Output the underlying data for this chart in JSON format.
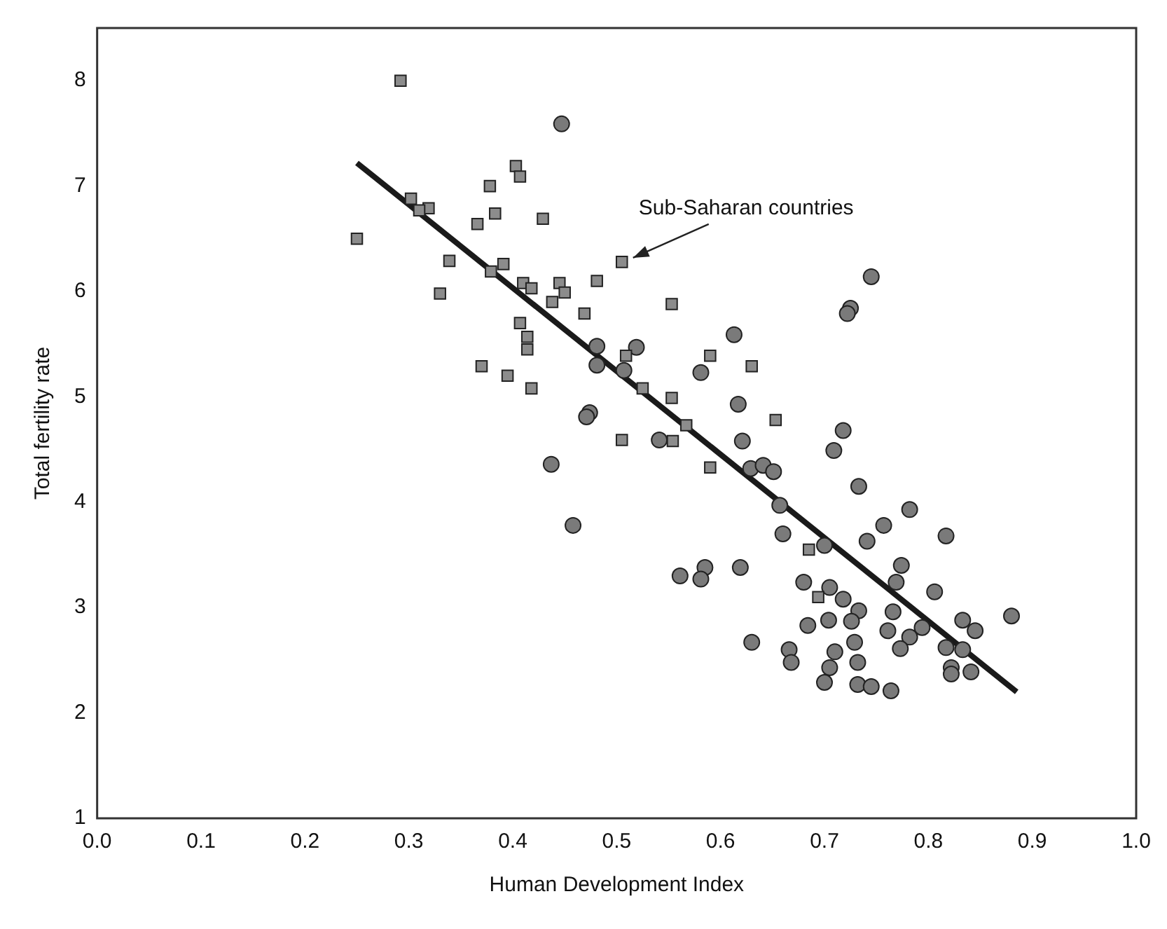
{
  "chart_data": {
    "type": "scatter",
    "xlabel": "Human Development Index",
    "ylabel": "Total fertility rate",
    "xlim": [
      0,
      1
    ],
    "xticks": [
      {
        "value": 0,
        "label": "0.0"
      },
      0.1,
      0.2,
      0.3,
      0.4,
      0.5,
      0.6,
      0.7,
      0.8,
      0.9,
      {
        "value": 1,
        "label": "1.0"
      }
    ],
    "ylim": [
      1,
      8.5
    ],
    "yticks": [
      1,
      2,
      3,
      4,
      5,
      6,
      7,
      8
    ],
    "grid": false,
    "legend": false,
    "annotations": [
      {
        "text": "Sub-Saharan countries",
        "x": 0.505,
        "y": 6.28
      }
    ],
    "series": [
      {
        "type": "scatter",
        "marker": "square",
        "color": "#8c8c8c",
        "x": [
          0.292,
          0.302,
          0.319,
          0.31,
          0.25,
          0.378,
          0.403,
          0.407,
          0.383,
          0.366,
          0.429,
          0.339,
          0.33,
          0.391,
          0.379,
          0.41,
          0.418,
          0.445,
          0.45,
          0.438,
          0.481,
          0.505,
          0.469,
          0.407,
          0.414,
          0.414,
          0.37,
          0.395,
          0.418,
          0.505,
          0.509,
          0.525,
          0.553,
          0.553,
          0.59,
          0.63,
          0.567,
          0.554,
          0.59,
          0.653,
          0.685,
          0.694
        ],
        "values": [
          8.0,
          6.88,
          6.79,
          6.77,
          6.5,
          7.0,
          7.19,
          7.09,
          6.74,
          6.64,
          6.69,
          6.29,
          5.98,
          6.26,
          6.19,
          6.08,
          6.03,
          6.08,
          5.99,
          5.9,
          6.1,
          6.28,
          5.79,
          5.7,
          5.57,
          5.45,
          5.29,
          5.2,
          5.08,
          4.59,
          5.39,
          5.08,
          5.88,
          4.99,
          5.39,
          5.29,
          4.73,
          4.58,
          4.33,
          4.78,
          3.55,
          3.1
        ]
      },
      {
        "type": "scatter",
        "marker": "circle",
        "color": "#7a7a7a",
        "x": [
          0.447,
          0.481,
          0.481,
          0.519,
          0.507,
          0.474,
          0.471,
          0.437,
          0.458,
          0.613,
          0.725,
          0.722,
          0.581,
          0.617,
          0.621,
          0.541,
          0.629,
          0.641,
          0.651,
          0.657,
          0.66,
          0.718,
          0.709,
          0.733,
          0.741,
          0.757,
          0.7,
          0.561,
          0.585,
          0.581,
          0.619,
          0.68,
          0.705,
          0.718,
          0.733,
          0.745,
          0.782,
          0.817,
          0.774,
          0.769,
          0.726,
          0.704,
          0.684,
          0.766,
          0.806,
          0.761,
          0.782,
          0.794,
          0.833,
          0.845,
          0.88,
          0.729,
          0.773,
          0.817,
          0.833,
          0.822,
          0.822,
          0.841,
          0.666,
          0.668,
          0.71,
          0.732,
          0.705,
          0.7,
          0.732,
          0.745,
          0.764,
          0.63
        ],
        "values": [
          7.59,
          5.48,
          5.3,
          5.47,
          5.25,
          4.85,
          4.81,
          4.36,
          3.78,
          5.59,
          5.84,
          5.79,
          5.23,
          4.93,
          4.58,
          4.59,
          4.32,
          4.35,
          4.29,
          3.97,
          3.7,
          4.68,
          4.49,
          4.15,
          3.63,
          3.78,
          3.59,
          3.3,
          3.38,
          3.27,
          3.38,
          3.24,
          3.19,
          3.08,
          2.97,
          6.14,
          3.93,
          3.68,
          3.4,
          3.24,
          2.87,
          2.88,
          2.83,
          2.96,
          3.15,
          2.78,
          2.72,
          2.81,
          2.88,
          2.78,
          2.92,
          2.67,
          2.61,
          2.62,
          2.6,
          2.43,
          2.37,
          2.39,
          2.6,
          2.48,
          2.58,
          2.48,
          2.43,
          2.29,
          2.27,
          2.25,
          2.21,
          2.67
        ]
      },
      {
        "type": "line",
        "marker": "none",
        "color": "#1a1a1a",
        "x": [
          0.25,
          0.885
        ],
        "values": [
          7.22,
          2.2
        ]
      }
    ]
  }
}
